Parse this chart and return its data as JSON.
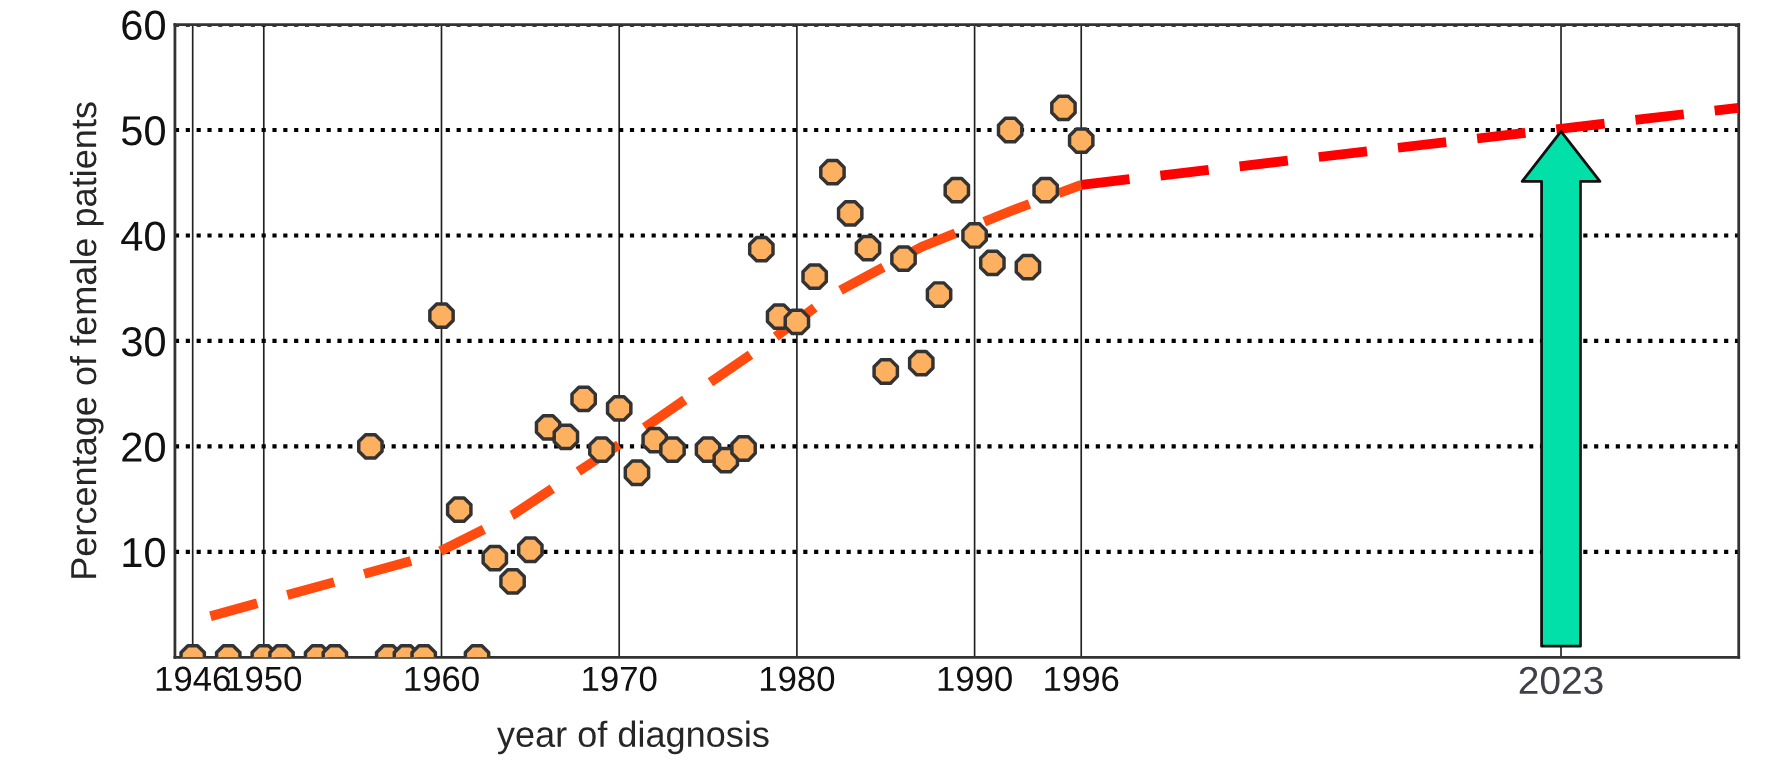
{
  "chart_data": {
    "type": "scatter",
    "xlabel": "year of diagnosis",
    "ylabel": "Percentage of female patients",
    "xlim": [
      1945,
      2033
    ],
    "xticks": [
      1946,
      1950,
      1960,
      1970,
      1980,
      1990,
      1996,
      2023
    ],
    "ylim": [
      0,
      60
    ],
    "yticks": [
      10,
      20,
      30,
      40,
      50,
      60
    ],
    "grid": true,
    "legend": false,
    "series": [
      {
        "color": "#fdb060",
        "marker": "circle",
        "x": [
          1946,
          1948,
          1950,
          1951,
          1953,
          1954,
          1956,
          1957,
          1958,
          1959,
          1960,
          1961,
          1962,
          1963,
          1964,
          1965,
          1966,
          1967,
          1968,
          1969,
          1970,
          1971,
          1972,
          1973,
          1975,
          1976,
          1977,
          1978,
          1979,
          1980,
          1981,
          1982,
          1983,
          1984,
          1985,
          1986,
          1987,
          1988,
          1989,
          1990,
          1991,
          1992,
          1993,
          1994,
          1995,
          1996
        ],
        "values": [
          0,
          0,
          0,
          0,
          0,
          0,
          20,
          0,
          0,
          0,
          32.4,
          14,
          0,
          9.4,
          7.2,
          10.2,
          21.8,
          20.9,
          24.5,
          19.7,
          23.6,
          17.5,
          20.6,
          19.7,
          19.7,
          18.7,
          19.8,
          38.7,
          32.3,
          31.8,
          36.1,
          46,
          42.1,
          38.8,
          27.1,
          37.8,
          27.9,
          34.4,
          44.3,
          40,
          37.4,
          50,
          37,
          44.3,
          52.1,
          49
        ]
      },
      {
        "type": "line",
        "color": "#ff4b10",
        "line_style": "dashed",
        "x": [
          1947,
          1959.5,
          1964,
          1971,
          1978,
          1982,
          1987,
          1992,
          1996
        ],
        "values": [
          3.9,
          9.7,
          13.5,
          21.3,
          29.4,
          34.4,
          38.9,
          42.3,
          44.8
        ]
      },
      {
        "type": "line",
        "color": "#ff0000",
        "line_style": "dashed",
        "x": [
          1996,
          2033
        ],
        "values": [
          44.8,
          52.1
        ]
      }
    ]
  }
}
